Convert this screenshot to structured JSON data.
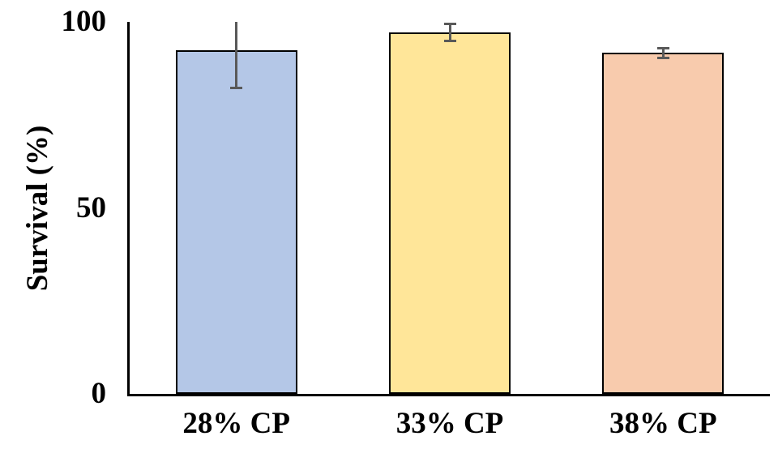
{
  "chart_data": {
    "type": "bar",
    "title": "",
    "xlabel": "",
    "ylabel": "Survival (%)",
    "categories": [
      "28% CP",
      "33% CP",
      "38% CP"
    ],
    "values": [
      92.3,
      97.2,
      91.8
    ],
    "errors": [
      9.9,
      2.3,
      1.3
    ],
    "bar_colors": [
      "#B4C7E7",
      "#FFE699",
      "#F8CBAD"
    ],
    "bar_border_color": "#000000",
    "error_bar_color": "#595959",
    "axis_color": "#000000",
    "yticks": [
      0,
      50,
      100
    ],
    "ytick_labels": [
      "0",
      "50",
      "100"
    ],
    "ylim": [
      0,
      100
    ],
    "grid": false,
    "legend": false,
    "error_bars_clipped_at_ymax": [
      true,
      false,
      false
    ]
  }
}
